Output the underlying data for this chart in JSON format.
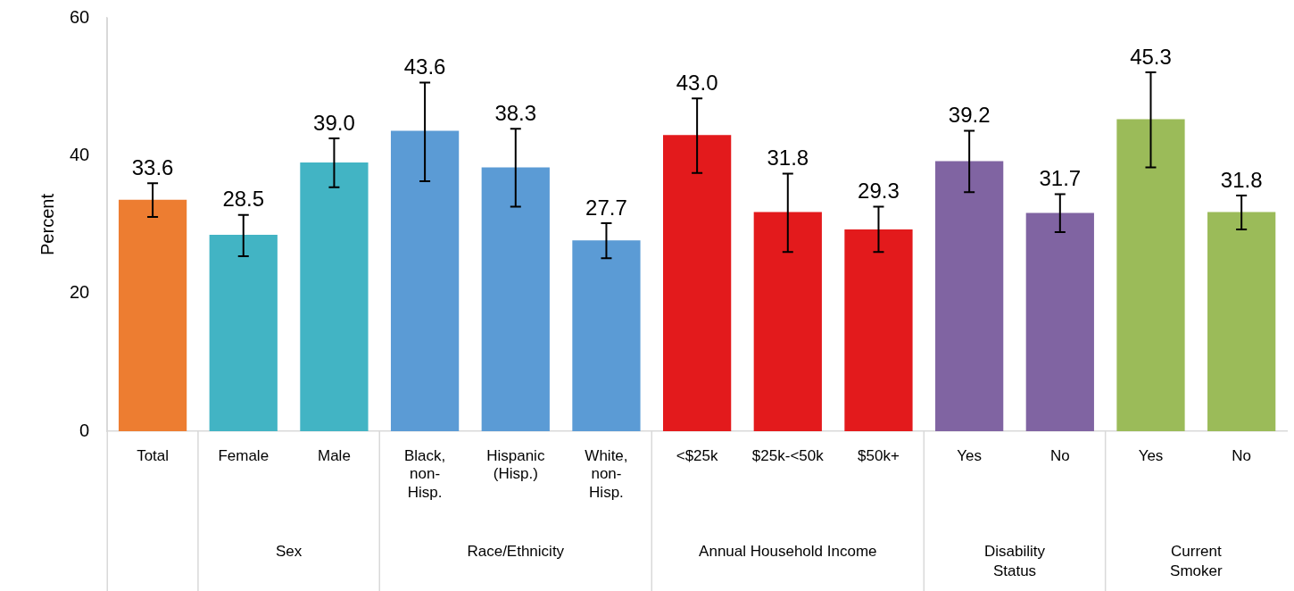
{
  "chart_data": {
    "type": "bar",
    "ylabel": "Percent",
    "categories": [
      "Total",
      "Female",
      "Male",
      "Black, non-Hisp.",
      "Hispanic (Hisp.)",
      "White, non-Hisp.",
      "<$25k",
      "$25k-<50k",
      "$50k+",
      "Yes",
      "No",
      "Yes",
      "No"
    ],
    "values": [
      33.6,
      28.5,
      39.0,
      43.6,
      38.3,
      27.7,
      43.0,
      31.8,
      29.3,
      39.2,
      31.7,
      45.3,
      31.8
    ],
    "value_labels": [
      "33.6",
      "28.5",
      "39.0",
      "43.6",
      "38.3",
      "27.7",
      "43.0",
      "31.8",
      "29.3",
      "39.2",
      "31.7",
      "45.3",
      "31.8"
    ],
    "colors": [
      "#ed7d31",
      "#42b4c4",
      "#42b4c4",
      "#5b9bd5",
      "#5b9bd5",
      "#5b9bd5",
      "#e31a1c",
      "#e31a1c",
      "#e31a1c",
      "#8064a2",
      "#8064a2",
      "#9bbb59",
      "#9bbb59"
    ],
    "errors": [
      [
        31.1,
        36.0
      ],
      [
        25.4,
        31.4
      ],
      [
        35.4,
        42.5
      ],
      [
        36.3,
        50.6
      ],
      [
        32.6,
        43.9
      ],
      [
        25.1,
        30.2
      ],
      [
        37.5,
        48.3
      ],
      [
        26.0,
        37.4
      ],
      [
        26.0,
        32.6
      ],
      [
        34.7,
        43.6
      ],
      [
        28.9,
        34.4
      ],
      [
        38.3,
        52.1
      ],
      [
        29.3,
        34.2
      ]
    ],
    "annotations": [
      "Sex",
      "Race/Ethnicity",
      "Annual Household Income",
      "Disability Status",
      "Current Smoker"
    ],
    "ylim": [
      0,
      60
    ],
    "yticks": [
      0,
      20,
      40,
      60
    ],
    "grid": false,
    "legend": false
  }
}
